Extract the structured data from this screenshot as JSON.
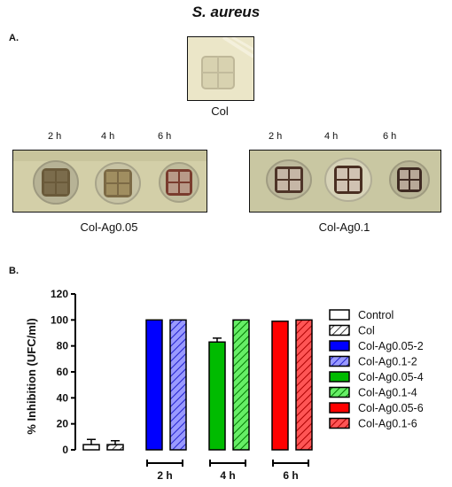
{
  "figure": {
    "title": "S. aureus",
    "panel_a_label": "A.",
    "panel_b_label": "B."
  },
  "panel_a": {
    "col_caption": "Col",
    "left_caption": "Col-Ag0.05",
    "right_caption": "Col-Ag0.1",
    "left_times": [
      "2 h",
      "4 h",
      "6 h"
    ],
    "right_times": [
      "2 h",
      "4 h",
      "6 h"
    ]
  },
  "chart_data": {
    "type": "bar",
    "ylabel": "% Inhibition (UFC/ml)",
    "ylim": [
      0,
      120
    ],
    "yticks": [
      0,
      20,
      40,
      60,
      80,
      100,
      120
    ],
    "group_labels": [
      "2 h",
      "4 h",
      "6 h"
    ],
    "series": [
      {
        "name": "Control",
        "value": 4,
        "error": 4,
        "color": "#ffffff",
        "hatch": false
      },
      {
        "name": "Col",
        "value": 4,
        "error": 3,
        "color": "#ffffff",
        "hatch": true
      },
      {
        "name": "Col-Ag0.05-2",
        "value": 100,
        "error": 0,
        "color": "#0000ff",
        "hatch": false
      },
      {
        "name": "Col-Ag0.1-2",
        "value": 100,
        "error": 0,
        "color": "#9999ff",
        "hatch": true
      },
      {
        "name": "Col-Ag0.05-4",
        "value": 83,
        "error": 3,
        "color": "#00bb00",
        "hatch": false
      },
      {
        "name": "Col-Ag0.1-4",
        "value": 100,
        "error": 0,
        "color": "#33dd33",
        "hatch": true
      },
      {
        "name": "Col-Ag0.05-6",
        "value": 99,
        "error": 0,
        "color": "#ff0000",
        "hatch": false
      },
      {
        "name": "Col-Ag0.1-6",
        "value": 100,
        "error": 0,
        "color": "#ff4444",
        "hatch": true
      }
    ],
    "legend_position": "right"
  }
}
